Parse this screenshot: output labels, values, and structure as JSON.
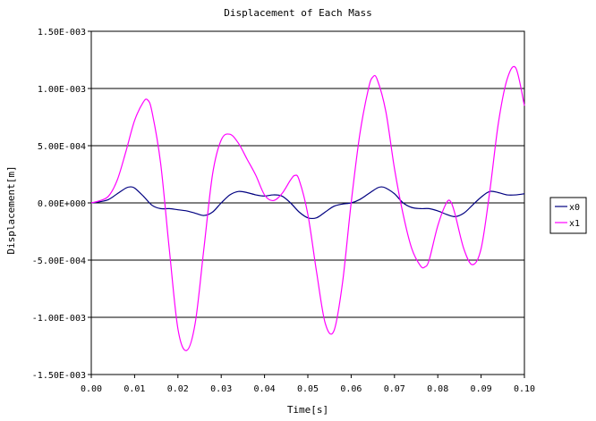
{
  "chart_data": {
    "type": "line",
    "title": "Displacement of Each Mass",
    "xlabel": "Time[s]",
    "ylabel": "Displacement[m]",
    "xlim": [
      0.0,
      0.1
    ],
    "ylim": [
      -0.0015,
      0.0015
    ],
    "x_ticks": [
      "0.00",
      "0.01",
      "0.02",
      "0.03",
      "0.04",
      "0.05",
      "0.06",
      "0.07",
      "0.08",
      "0.09",
      "0.10"
    ],
    "y_ticks": [
      "1.50E-003",
      "1.00E-003",
      "5.00E-004",
      "0.00E+000",
      "-5.00E-004",
      "-1.00E-003",
      "-1.50E-003"
    ],
    "grid": "horizontal",
    "legend_position": "right",
    "series": [
      {
        "name": "x0",
        "color": "#000080",
        "points": [
          [
            0.0,
            0.0
          ],
          [
            0.002,
            1e-05
          ],
          [
            0.004,
            3e-05
          ],
          [
            0.006,
            8e-05
          ],
          [
            0.008,
            0.00013
          ],
          [
            0.009,
            0.00014
          ],
          [
            0.01,
            0.00013
          ],
          [
            0.012,
            6e-05
          ],
          [
            0.014,
            -2e-05
          ],
          [
            0.016,
            -5e-05
          ],
          [
            0.018,
            -5e-05
          ],
          [
            0.02,
            -6e-05
          ],
          [
            0.022,
            -7e-05
          ],
          [
            0.024,
            -9e-05
          ],
          [
            0.026,
            -0.00011
          ],
          [
            0.028,
            -8e-05
          ],
          [
            0.03,
            0.0
          ],
          [
            0.032,
            7e-05
          ],
          [
            0.034,
            0.0001
          ],
          [
            0.036,
            9e-05
          ],
          [
            0.038,
            7e-05
          ],
          [
            0.04,
            6e-05
          ],
          [
            0.042,
            7e-05
          ],
          [
            0.044,
            6e-05
          ],
          [
            0.046,
            0.0
          ],
          [
            0.048,
            -8e-05
          ],
          [
            0.05,
            -0.00013
          ],
          [
            0.052,
            -0.00013
          ],
          [
            0.054,
            -8e-05
          ],
          [
            0.056,
            -3e-05
          ],
          [
            0.058,
            -1e-05
          ],
          [
            0.06,
            0.0
          ],
          [
            0.062,
            3e-05
          ],
          [
            0.064,
            8e-05
          ],
          [
            0.066,
            0.00013
          ],
          [
            0.067,
            0.00014
          ],
          [
            0.068,
            0.00013
          ],
          [
            0.07,
            8e-05
          ],
          [
            0.072,
            0.0
          ],
          [
            0.074,
            -4e-05
          ],
          [
            0.076,
            -5e-05
          ],
          [
            0.078,
            -5e-05
          ],
          [
            0.08,
            -7e-05
          ],
          [
            0.082,
            -0.0001
          ],
          [
            0.084,
            -0.00012
          ],
          [
            0.086,
            -9e-05
          ],
          [
            0.088,
            -2e-05
          ],
          [
            0.09,
            5e-05
          ],
          [
            0.092,
            0.0001
          ],
          [
            0.094,
            9e-05
          ],
          [
            0.096,
            7e-05
          ],
          [
            0.098,
            7e-05
          ],
          [
            0.1,
            8e-05
          ]
        ]
      },
      {
        "name": "x1",
        "color": "#ff00ff",
        "points": [
          [
            0.0,
            0.0
          ],
          [
            0.002,
            2e-05
          ],
          [
            0.004,
            6e-05
          ],
          [
            0.006,
            0.0002
          ],
          [
            0.008,
            0.00045
          ],
          [
            0.01,
            0.00072
          ],
          [
            0.012,
            0.00088
          ],
          [
            0.013,
            0.0009
          ],
          [
            0.014,
            0.0008
          ],
          [
            0.016,
            0.00035
          ],
          [
            0.018,
            -0.0004
          ],
          [
            0.02,
            -0.0011
          ],
          [
            0.022,
            -0.00129
          ],
          [
            0.024,
            -0.00105
          ],
          [
            0.026,
            -0.0004
          ],
          [
            0.028,
            0.00025
          ],
          [
            0.03,
            0.00055
          ],
          [
            0.032,
            0.0006
          ],
          [
            0.034,
            0.00052
          ],
          [
            0.036,
            0.00038
          ],
          [
            0.038,
            0.00024
          ],
          [
            0.04,
            7e-05
          ],
          [
            0.042,
            2e-05
          ],
          [
            0.044,
            8e-05
          ],
          [
            0.046,
            0.0002
          ],
          [
            0.047,
            0.00024
          ],
          [
            0.048,
            0.0002
          ],
          [
            0.05,
            -0.0001
          ],
          [
            0.052,
            -0.0006
          ],
          [
            0.054,
            -0.00105
          ],
          [
            0.056,
            -0.00112
          ],
          [
            0.058,
            -0.0007
          ],
          [
            0.06,
            0.0
          ],
          [
            0.062,
            0.0006
          ],
          [
            0.064,
            0.001
          ],
          [
            0.065,
            0.0011
          ],
          [
            0.066,
            0.00108
          ],
          [
            0.068,
            0.0008
          ],
          [
            0.07,
            0.0003
          ],
          [
            0.072,
            -0.0001
          ],
          [
            0.074,
            -0.0004
          ],
          [
            0.076,
            -0.00055
          ],
          [
            0.077,
            -0.00056
          ],
          [
            0.078,
            -0.0005
          ],
          [
            0.08,
            -0.0002
          ],
          [
            0.082,
            0.0
          ],
          [
            0.083,
            1e-05
          ],
          [
            0.084,
            -0.0001
          ],
          [
            0.086,
            -0.0004
          ],
          [
            0.088,
            -0.00054
          ],
          [
            0.09,
            -0.0004
          ],
          [
            0.092,
            0.0001
          ],
          [
            0.094,
            0.0007
          ],
          [
            0.096,
            0.00108
          ],
          [
            0.098,
            0.00118
          ],
          [
            0.1,
            0.00085
          ]
        ]
      }
    ]
  }
}
